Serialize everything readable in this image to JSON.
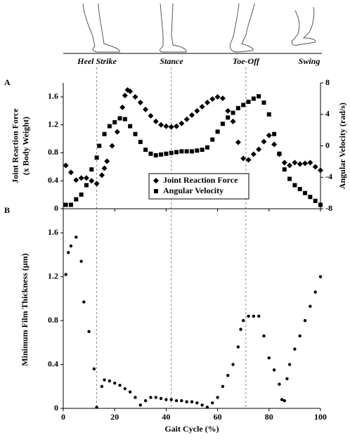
{
  "header": {
    "phases": [
      "Heel Strike",
      "Stance",
      "Toe-Off",
      "Swing"
    ]
  },
  "chart_data": [
    {
      "type": "scatter",
      "panel": "A",
      "ylabel": [
        "Joint Reaction Force",
        "(x Body Weight)"
      ],
      "y2label": "Angular Velocity (rad/s)",
      "xlim": [
        0,
        100
      ],
      "xticks": [
        0,
        20,
        40,
        60,
        80,
        100
      ],
      "xtick_labels": false,
      "ylim": [
        0,
        1.8
      ],
      "yticks": [
        0,
        0.4,
        0.8,
        1.2,
        1.6
      ],
      "y2lim": [
        -8,
        8
      ],
      "y2ticks": [
        -8,
        -4,
        0,
        4,
        8
      ],
      "vlines": [
        13,
        42,
        71
      ],
      "legend": "lower center",
      "series": [
        {
          "name": "Joint Reaction Force",
          "color": "#000000",
          "marker": "diamond",
          "x": [
            1,
            3,
            5,
            7,
            9,
            11,
            13,
            15,
            16,
            17,
            19,
            21,
            23,
            24,
            25,
            26,
            28,
            30,
            32,
            34,
            36,
            38,
            40,
            42,
            44,
            46,
            48,
            50,
            52,
            54,
            56,
            58,
            60,
            62,
            64,
            66,
            68,
            70,
            72,
            74,
            76,
            78,
            80,
            82,
            84,
            86,
            88,
            90,
            92,
            94,
            96,
            98,
            100
          ],
          "values": [
            0.62,
            0.52,
            0.41,
            0.44,
            0.44,
            0.4,
            0.36,
            0.48,
            0.58,
            0.68,
            0.9,
            1.1,
            1.45,
            1.62,
            1.7,
            1.68,
            1.6,
            1.52,
            1.42,
            1.33,
            1.25,
            1.2,
            1.18,
            1.17,
            1.18,
            1.22,
            1.28,
            1.34,
            1.4,
            1.46,
            1.52,
            1.57,
            1.6,
            1.58,
            1.4,
            1.25,
            0.95,
            0.72,
            0.7,
            0.78,
            0.85,
            0.96,
            1.05,
            0.92,
            0.78,
            0.66,
            0.62,
            0.66,
            0.64,
            0.65,
            0.66,
            0.6,
            0.55
          ]
        },
        {
          "name": "Angular Velocity",
          "color": "#000000",
          "marker": "square",
          "axis": "y2",
          "x": [
            1,
            3,
            5,
            7,
            9,
            11,
            13,
            14,
            16,
            18,
            20,
            22,
            24,
            26,
            28,
            30,
            32,
            34,
            36,
            38,
            40,
            42,
            44,
            46,
            48,
            50,
            52,
            54,
            56,
            58,
            60,
            62,
            64,
            66,
            68,
            70,
            72,
            74,
            76,
            78,
            80,
            82,
            84,
            86,
            88,
            90,
            92,
            94,
            96,
            98,
            100
          ],
          "values": [
            -7.5,
            -7.5,
            -6.8,
            -6.2,
            -5,
            -3,
            -1.5,
            0,
            1.5,
            2.5,
            3,
            3.5,
            3.4,
            2.5,
            1.5,
            0.5,
            -0.5,
            -1,
            -1.2,
            -1.1,
            -1,
            -0.9,
            -0.8,
            -0.7,
            -0.7,
            -0.7,
            -0.6,
            -0.5,
            -0.2,
            0.8,
            1.8,
            2.8,
            3.6,
            4.2,
            4.8,
            5.2,
            5.6,
            6,
            6.3,
            5.5,
            4,
            1.5,
            -1,
            -3,
            -4.2,
            -5,
            -5.5,
            -6,
            -6.5,
            -7,
            -7.5
          ]
        }
      ]
    },
    {
      "type": "scatter",
      "panel": "B",
      "ylabel": [
        "Minimum Film Thickness (µm)"
      ],
      "xlabel": "Gait Cycle (%)",
      "xlim": [
        0,
        100
      ],
      "xticks": [
        0,
        20,
        40,
        60,
        80,
        100
      ],
      "xtick_labels": true,
      "ylim": [
        0,
        1.8
      ],
      "yticks": [
        0,
        0.4,
        0.8,
        1.2,
        1.6
      ],
      "vlines": [
        13,
        42,
        71
      ],
      "series": [
        {
          "color": "#000000",
          "marker": "circle",
          "x": [
            1,
            2,
            3,
            5,
            7,
            8,
            10,
            12,
            13,
            15,
            16,
            18,
            20,
            22,
            24,
            26,
            28,
            30,
            32,
            34,
            36,
            38,
            40,
            42,
            44,
            46,
            48,
            50,
            52,
            54,
            56,
            58,
            60,
            62,
            64,
            66,
            68,
            69,
            70,
            72,
            74,
            76,
            78,
            80,
            82,
            84,
            85,
            86,
            87,
            88,
            90,
            92,
            94,
            96,
            98,
            100
          ],
          "values": [
            1.22,
            1.42,
            1.48,
            1.56,
            1.34,
            0.97,
            0.7,
            0.36,
            0.01,
            0.2,
            0.26,
            0.25,
            0.23,
            0.21,
            0.18,
            0.15,
            0.1,
            0.03,
            0.07,
            0.1,
            0.1,
            0.09,
            0.08,
            0.08,
            0.07,
            0.07,
            0.06,
            0.06,
            0.05,
            0.03,
            0.01,
            0.05,
            0.1,
            0.2,
            0.3,
            0.4,
            0.56,
            0.72,
            0.8,
            0.84,
            0.84,
            0.84,
            0.66,
            0.46,
            0.35,
            0.22,
            0.08,
            0.07,
            0.27,
            0.4,
            0.54,
            0.66,
            0.8,
            0.93,
            1.06,
            1.2
          ]
        }
      ]
    }
  ]
}
